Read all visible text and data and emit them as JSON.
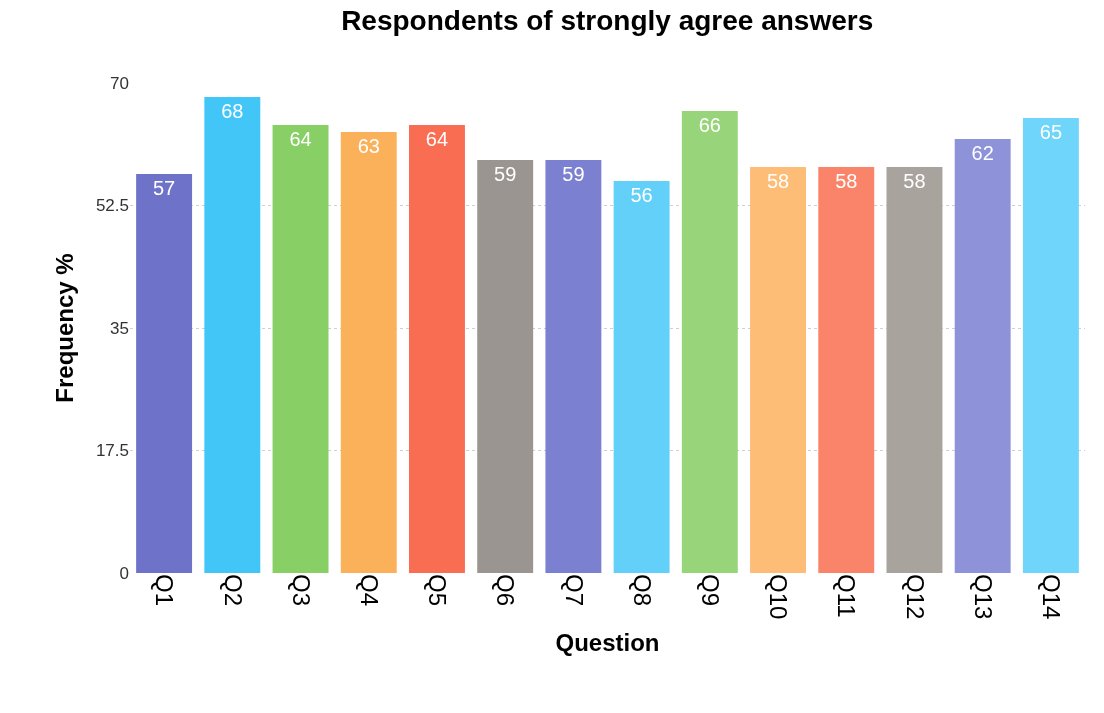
{
  "chart_data": {
    "type": "bar",
    "title": "Respondents of strongly agree answers",
    "xlabel": "Question",
    "ylabel": "Frequency %",
    "categories": [
      "Q1",
      "Q2",
      "Q3",
      "Q4",
      "Q5",
      "Q6",
      "Q7",
      "Q8",
      "Q9",
      "Q10",
      "Q11",
      "Q12",
      "Q13",
      "Q14"
    ],
    "values": [
      57,
      68,
      64,
      63,
      64,
      59,
      59,
      56,
      66,
      58,
      58,
      58,
      62,
      65
    ],
    "colors": [
      "#6e72c8",
      "#42c6f8",
      "#88cf66",
      "#fbb15a",
      "#f96d52",
      "#9a9590",
      "#7c80d0",
      "#63d0f9",
      "#98d47a",
      "#fdbd76",
      "#f98469",
      "#a8a39d",
      "#8e92d9",
      "#6fd5fa"
    ],
    "ylim": [
      0,
      70
    ],
    "yticks": [
      0,
      17.5,
      35,
      52.5,
      70
    ],
    "grid": "y",
    "data_labels": true
  }
}
